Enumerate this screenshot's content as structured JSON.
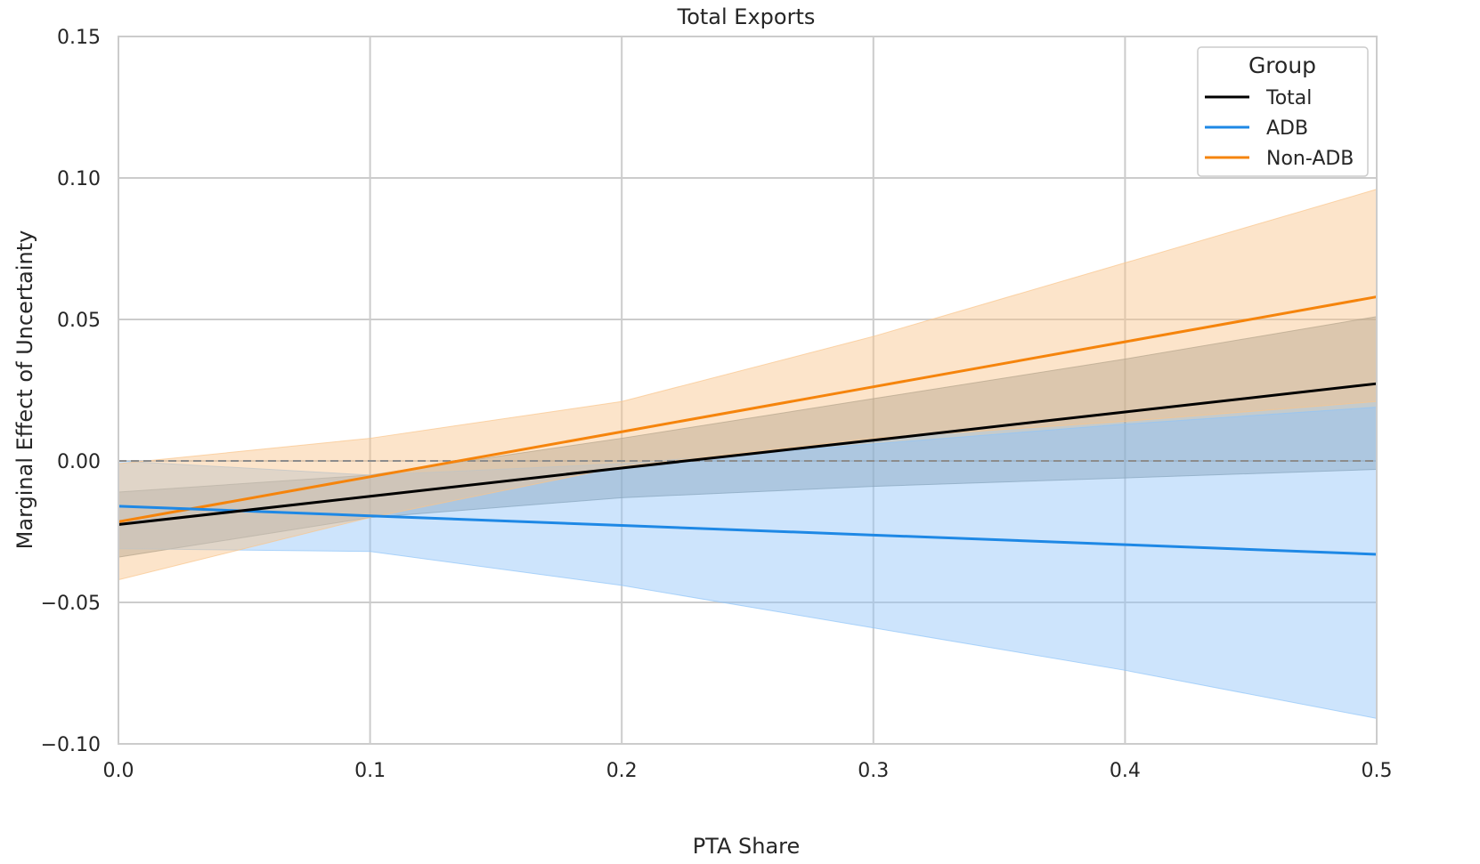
{
  "chart_data": {
    "type": "line",
    "title": "Total Exports",
    "xlabel": "PTA Share",
    "ylabel": "Marginal Effect of Uncertainty",
    "xlim": [
      0.0,
      0.5
    ],
    "ylim": [
      -0.1,
      0.15
    ],
    "xticks": [
      0.0,
      0.1,
      0.2,
      0.3,
      0.4,
      0.5
    ],
    "xtick_labels": [
      "0.0",
      "0.1",
      "0.2",
      "0.3",
      "0.4",
      "0.5"
    ],
    "yticks": [
      -0.1,
      -0.05,
      0.0,
      0.05,
      0.1,
      0.15
    ],
    "ytick_labels": [
      "−0.10",
      "−0.05",
      "0.00",
      "0.05",
      "0.10",
      "0.15"
    ],
    "grid": true,
    "reference_line": {
      "y": 0.0,
      "style": "dashed",
      "color": "#8c8c8c"
    },
    "legend": {
      "title": "Group",
      "position": "top-right"
    },
    "x": [
      0.0,
      0.1,
      0.2,
      0.3,
      0.4,
      0.5
    ],
    "series": [
      {
        "name": "Total",
        "color": "#000000",
        "band_color": "#7f8c8d",
        "y": [
          -0.0225,
          -0.0125,
          -0.0025,
          0.0073,
          0.0173,
          0.0273
        ],
        "ci_lower": [
          -0.034,
          -0.02,
          -0.013,
          -0.009,
          -0.006,
          -0.003
        ],
        "ci_upper": [
          -0.011,
          -0.005,
          0.008,
          0.022,
          0.036,
          0.051
        ]
      },
      {
        "name": "ADB",
        "color": "#1e88e5",
        "band_color": "#90c4f8",
        "y": [
          -0.016,
          -0.0194,
          -0.0228,
          -0.0262,
          -0.0296,
          -0.033
        ],
        "ci_lower": [
          -0.031,
          -0.032,
          -0.044,
          -0.059,
          -0.074,
          -0.091
        ],
        "ci_upper": [
          0.0,
          -0.005,
          -0.001,
          0.006,
          0.013,
          0.019
        ]
      },
      {
        "name": "Non-ADB",
        "color": "#f5840c",
        "band_color": "#f9c48a",
        "y": [
          -0.0215,
          -0.0056,
          0.0103,
          0.0262,
          0.0421,
          0.058
        ],
        "ci_lower": [
          -0.042,
          -0.02,
          -0.002,
          0.008,
          0.014,
          0.021
        ],
        "ci_upper": [
          -0.001,
          0.008,
          0.021,
          0.044,
          0.07,
          0.096
        ]
      }
    ]
  }
}
